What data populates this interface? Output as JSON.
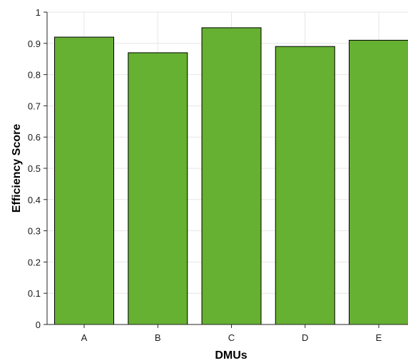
{
  "chart_data": {
    "type": "bar",
    "title": "",
    "xlabel": "DMUs",
    "ylabel": "Efficiency Score",
    "categories": [
      "A",
      "B",
      "C",
      "D",
      "E"
    ],
    "values": [
      0.92,
      0.87,
      0.95,
      0.89,
      0.91
    ],
    "ylim": [
      0,
      1
    ],
    "yticks": [
      "0",
      "0.1",
      "0.2",
      "0.3",
      "0.4",
      "0.5",
      "0.6",
      "0.7",
      "0.8",
      "0.9",
      "1"
    ],
    "grid": true,
    "legend": "none",
    "colors": {
      "bar_fill": "#66b032",
      "bar_edge": "#000000",
      "grid": "#e6e6e6",
      "axis": "#262626"
    }
  }
}
